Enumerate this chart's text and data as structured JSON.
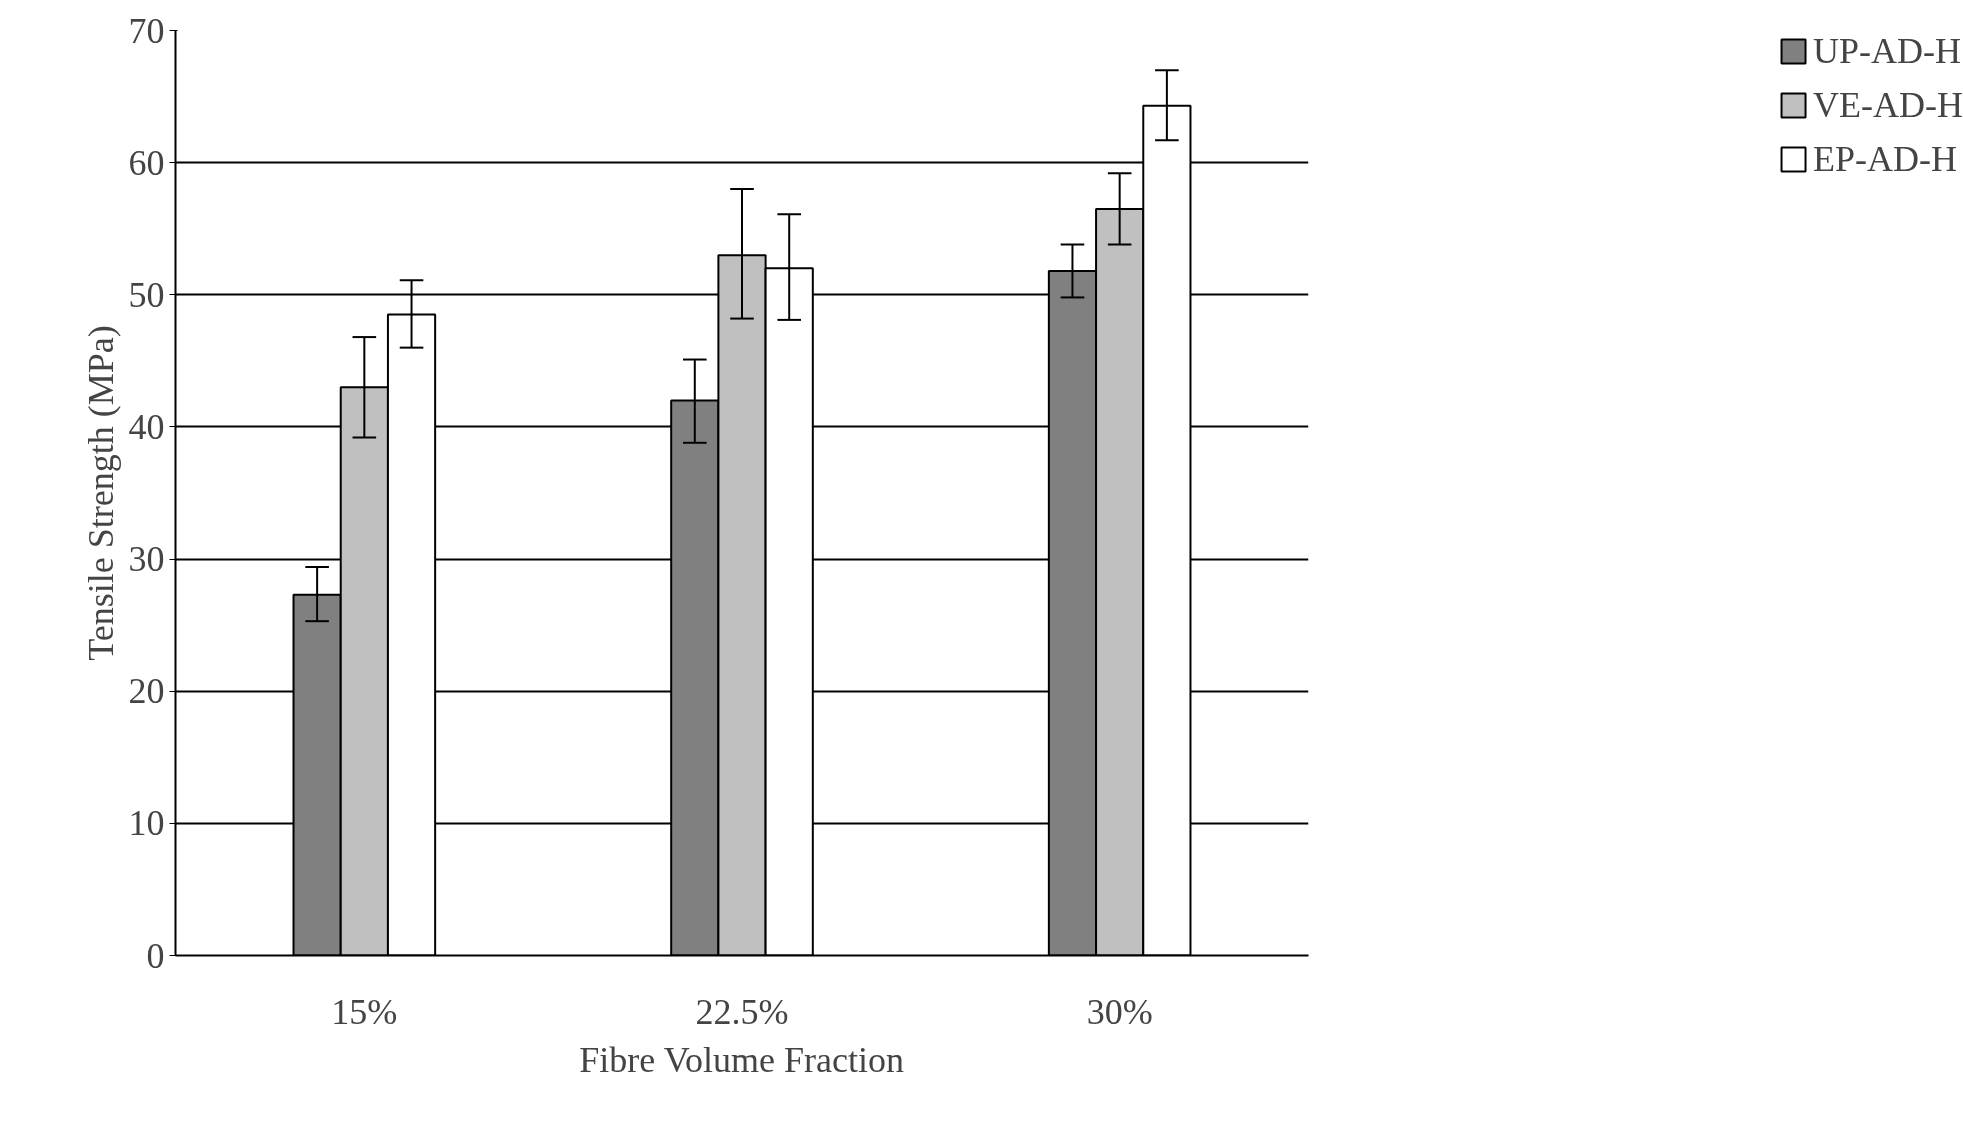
{
  "chart_data": {
    "type": "bar",
    "xlabel": "Fibre Volume Fraction",
    "ylabel": "Tensile Strength (MPa)",
    "categories": [
      "15%",
      "22.5%",
      "30%"
    ],
    "series": [
      {
        "name": "UP-AD-H",
        "color": "#808080",
        "values": [
          27.3,
          42.0,
          51.8
        ],
        "errors": [
          [
            25.3,
            29.4
          ],
          [
            38.8,
            45.1
          ],
          [
            49.8,
            53.8
          ]
        ]
      },
      {
        "name": "VE-AD-H",
        "color": "#c0c0c0",
        "values": [
          43.0,
          53.0,
          56.5
        ],
        "errors": [
          [
            39.2,
            46.8
          ],
          [
            48.2,
            58.0
          ],
          [
            53.8,
            59.2
          ]
        ]
      },
      {
        "name": "EP-AD-H",
        "color": "#ffffff",
        "values": [
          48.5,
          52.0,
          64.3
        ],
        "errors": [
          [
            46.0,
            51.1
          ],
          [
            48.1,
            56.1
          ],
          [
            61.7,
            67.0
          ]
        ]
      }
    ],
    "ylim": [
      0,
      70
    ],
    "yticks": [
      0,
      10,
      20,
      30,
      40,
      50,
      60,
      70
    ],
    "grid": "y",
    "legend": "right"
  }
}
